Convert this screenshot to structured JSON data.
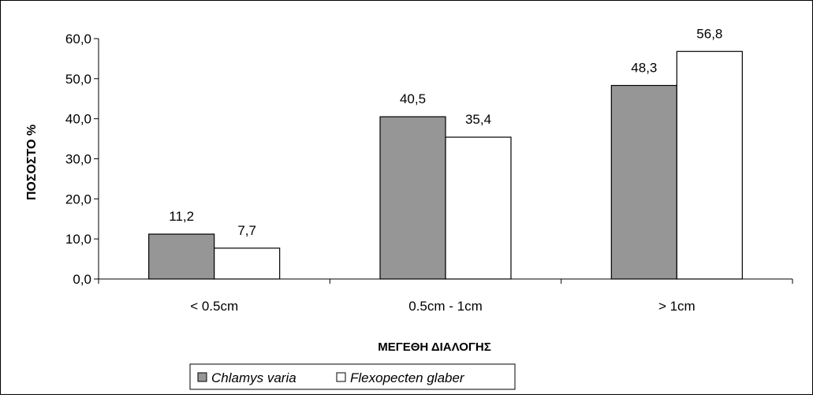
{
  "chart_data": {
    "type": "bar",
    "title": "",
    "xlabel": "ΜΕΓΕΘΗ ΔΙΑΛΟΓΗΣ",
    "ylabel": "ΠΟΣΟΣΤΟ %",
    "ylim": [
      0,
      60
    ],
    "yticks": [
      "0,0",
      "10,0",
      "20,0",
      "30,0",
      "40,0",
      "50,0",
      "60,0"
    ],
    "categories": [
      "< 0.5cm",
      "0.5cm - 1cm",
      "> 1cm"
    ],
    "series": [
      {
        "name": "Chlamys varia",
        "values": [
          11.2,
          40.5,
          48.3
        ],
        "labels": [
          "11,2",
          "40,5",
          "48,3"
        ],
        "color": "#969696"
      },
      {
        "name": "Flexopecten glaber",
        "values": [
          7.7,
          35.4,
          56.8
        ],
        "labels": [
          "7,7",
          "35,4",
          "56,8"
        ],
        "color": "#ffffff"
      }
    ],
    "grid": false,
    "legend": "bottom-left"
  }
}
